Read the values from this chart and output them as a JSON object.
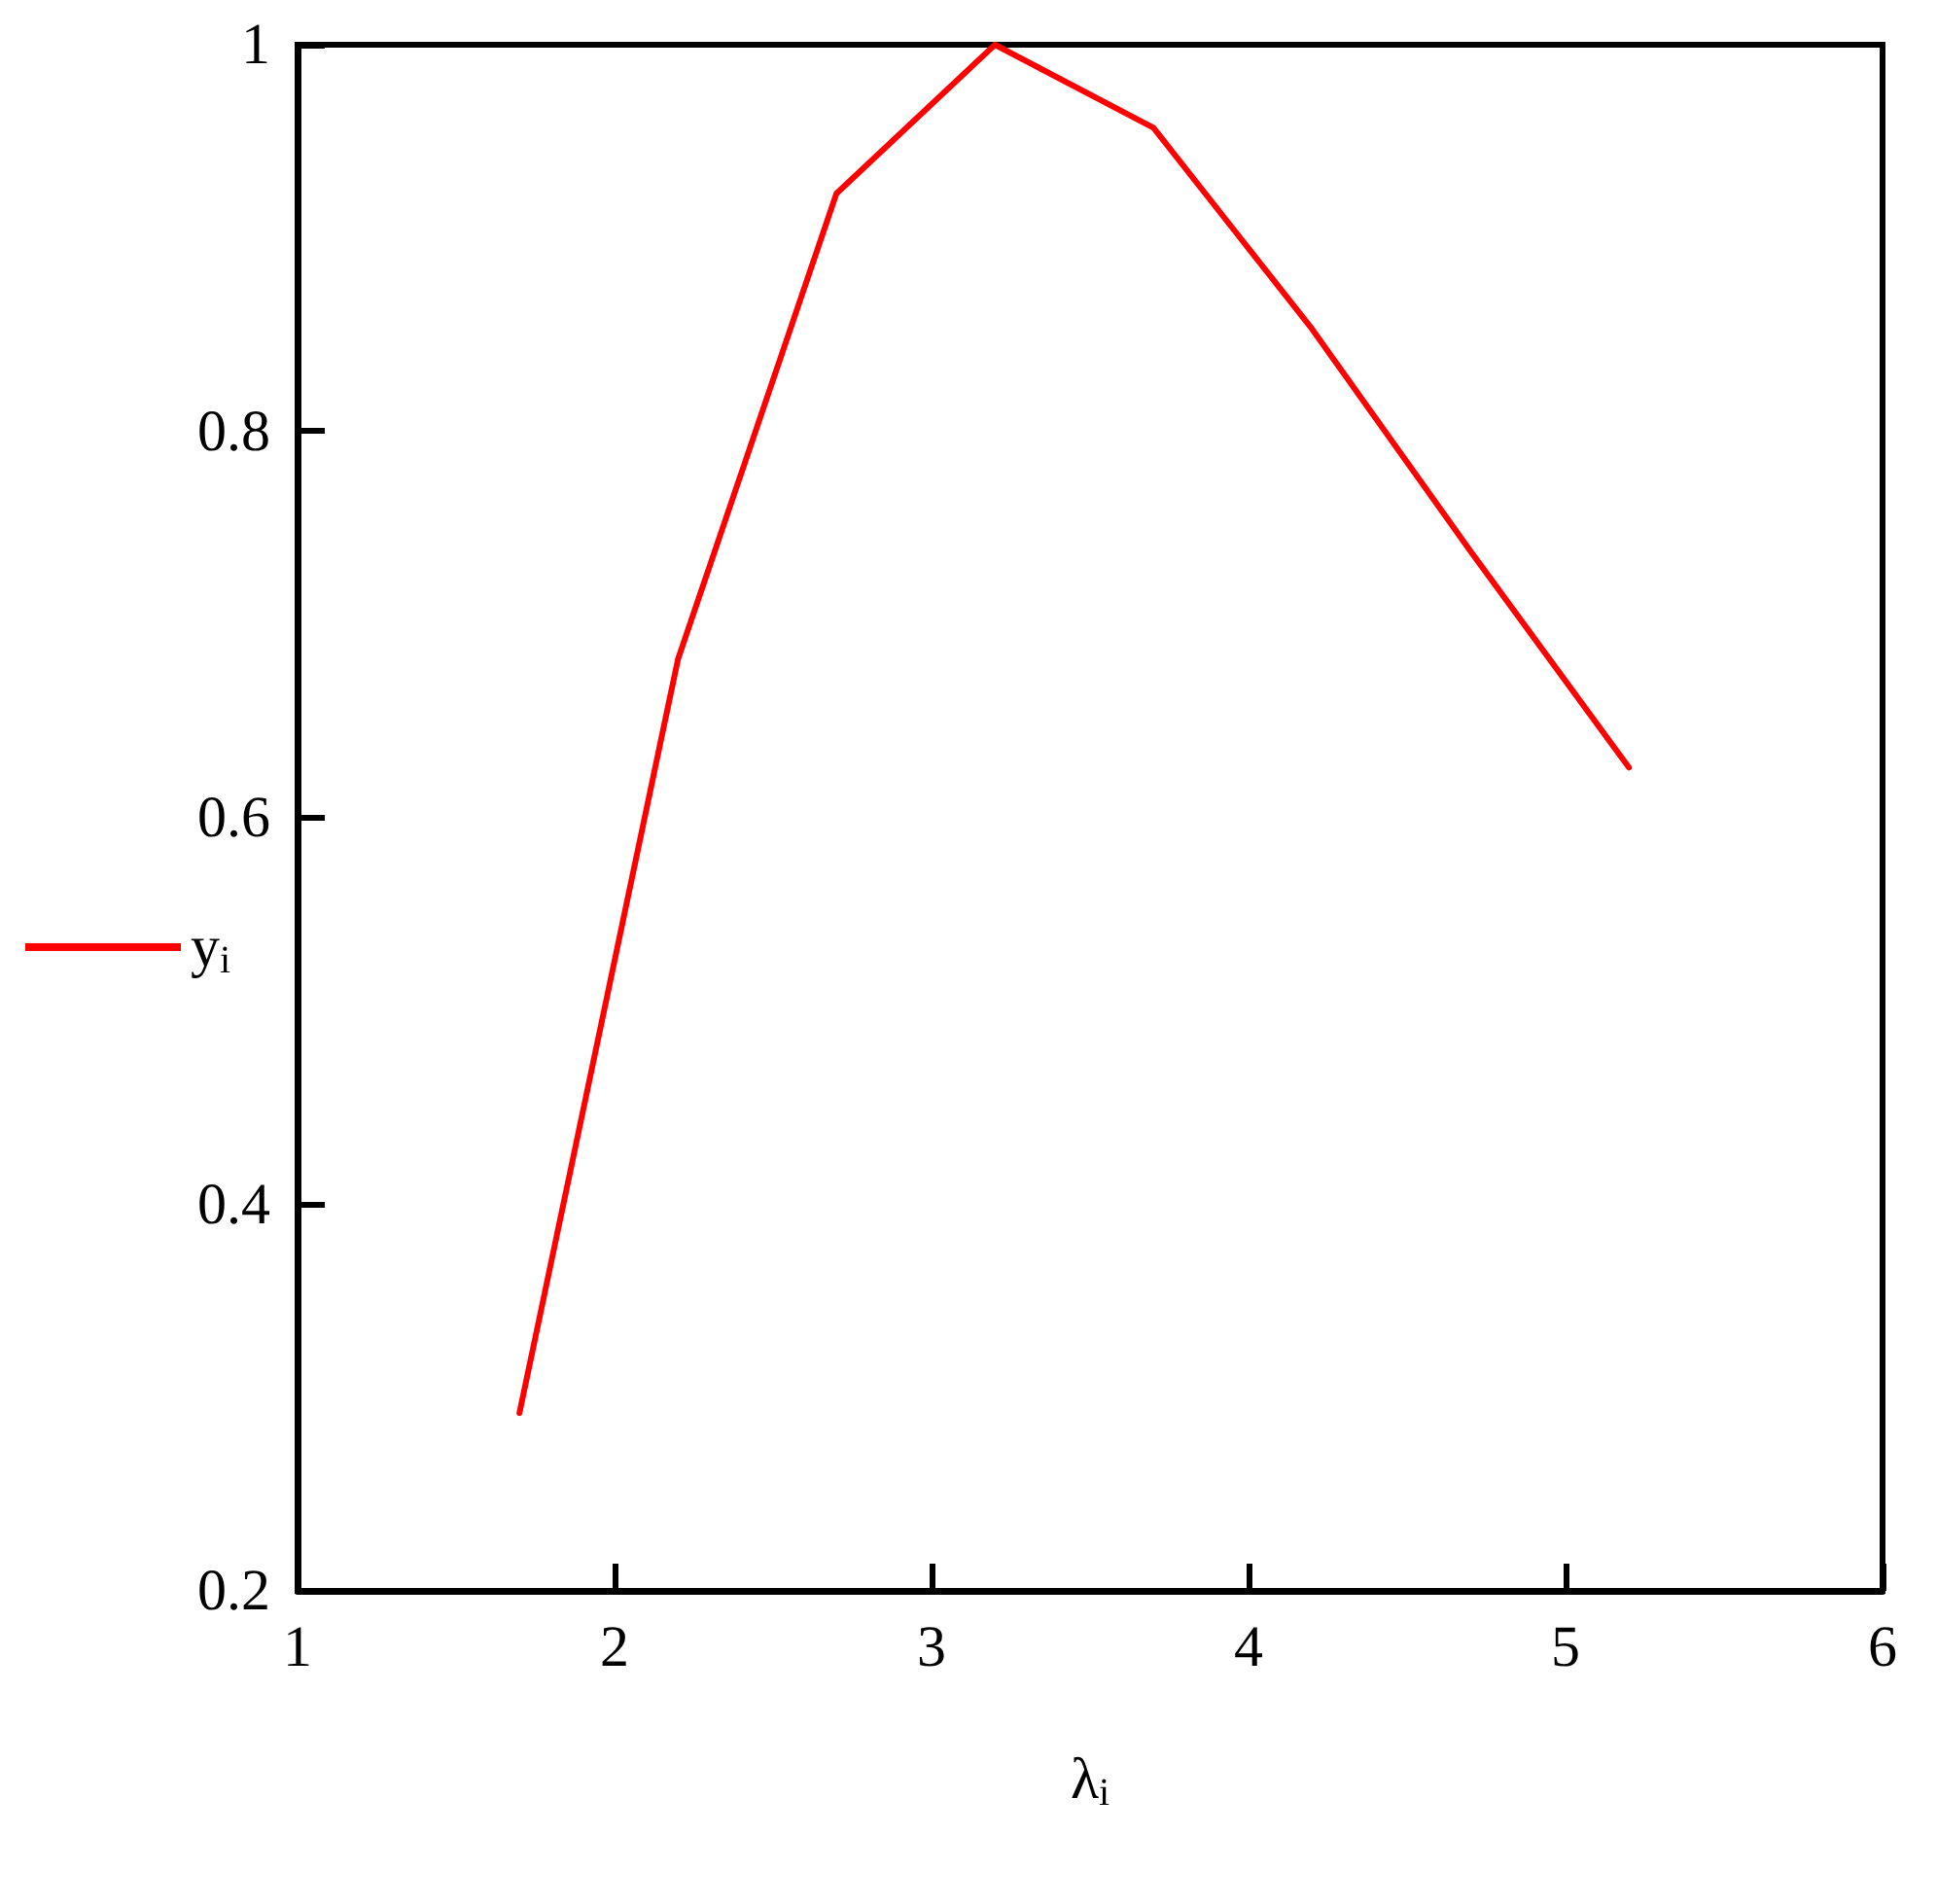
{
  "chart_data": {
    "type": "line",
    "xlabel": "λ$_{i}$",
    "x": [
      1.7,
      2.2,
      2.7,
      3.2,
      3.7,
      4.2,
      4.7,
      5.2
    ],
    "series": [
      {
        "name": "y$_{i}$",
        "color": "#ff0000",
        "values": [
          0.292,
          0.682,
          0.923,
          1.0,
          0.957,
          0.853,
          0.738,
          0.626
        ]
      }
    ],
    "xlim": [
      1,
      6
    ],
    "xticks": [
      1,
      2,
      3,
      4,
      5,
      6
    ],
    "ylim": [
      0.2,
      1
    ],
    "yticks": [
      0.2,
      0.4,
      0.6,
      0.8,
      1
    ],
    "grid": false,
    "legend": "left",
    "marker": "none",
    "line_style": "solid"
  }
}
